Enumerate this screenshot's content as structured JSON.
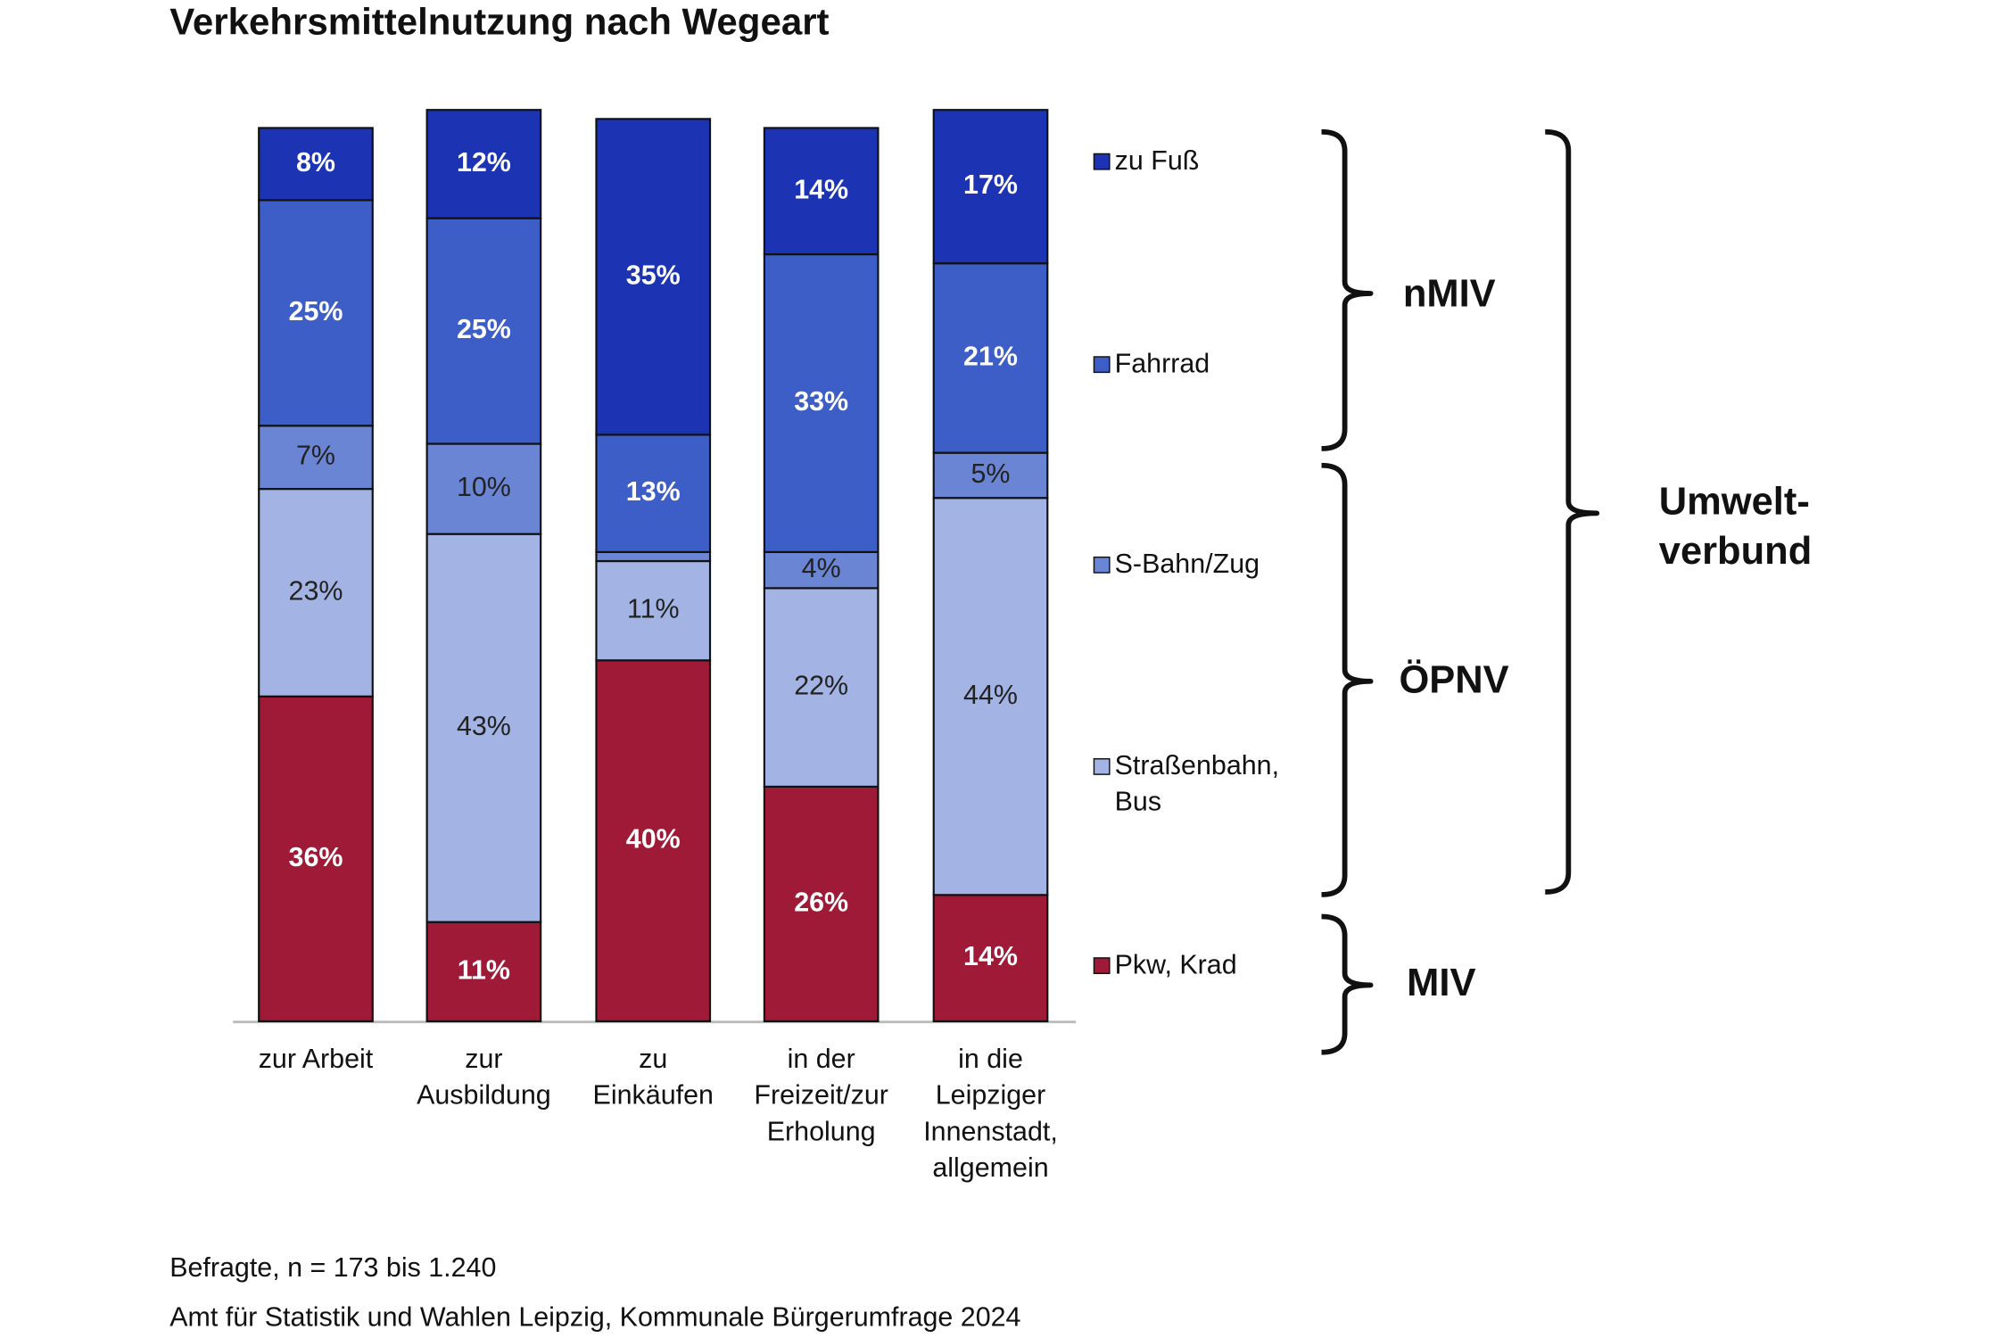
{
  "chart_data": {
    "type": "stacked_bar",
    "title": "Verkehrsmittelnutzung nach Wegeart",
    "categories": [
      "zur Arbeit",
      "zur Ausbildung",
      "zu Einkäufen",
      "in der Freizeit/zur Erholung",
      "in die Leipziger Innenstadt, allgemein"
    ],
    "series": [
      {
        "name": "Pkw, Krad",
        "color": "#9e1a36",
        "values": [
          36,
          11,
          40,
          26,
          14
        ],
        "value_labels": [
          "36%",
          "11%",
          "40%",
          "26%",
          "14%"
        ]
      },
      {
        "name": "Straßenbahn, Bus",
        "color": "#a3b4e4",
        "values": [
          23,
          43,
          11,
          22,
          44
        ],
        "value_labels": [
          "23%",
          "43%",
          "11%",
          "22%",
          "44%"
        ]
      },
      {
        "name": "S-Bahn/Zug",
        "color": "#6b85d5",
        "values": [
          7,
          10,
          1,
          4,
          5
        ],
        "value_labels": [
          "7%",
          "10%",
          null,
          "4%",
          "5%"
        ]
      },
      {
        "name": "Fahrrad",
        "color": "#3d5ec6",
        "values": [
          25,
          25,
          13,
          33,
          21
        ],
        "value_labels": [
          "25%",
          "25%",
          "13%",
          "33%",
          "21%"
        ]
      },
      {
        "name": "zu Fuß",
        "color": "#1c34b4",
        "values": [
          8,
          12,
          35,
          14,
          17
        ],
        "value_labels": [
          "8%",
          "12%",
          "35%",
          "14%",
          "17%"
        ]
      }
    ],
    "ylim": [
      0,
      100
    ],
    "groups": [
      {
        "label": [
          "nMIV"
        ]
      },
      {
        "label": [
          "ÖPNV"
        ]
      },
      {
        "label": [
          "MIV"
        ]
      },
      {
        "label": [
          "Umwelt-",
          "verbund"
        ]
      }
    ],
    "notes": [
      "Befragte, n = 173 bis 1.240",
      "Amt für Statistik und Wahlen Leipzig, Kommunale Bürgerumfrage 2024"
    ]
  }
}
